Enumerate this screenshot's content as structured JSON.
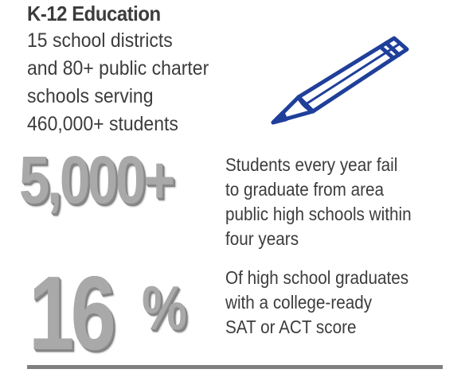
{
  "heading": "K-12 Education",
  "intro": {
    "lines": [
      "15 school districts",
      "and 80+ public charter",
      "schools serving",
      "460,000+ students"
    ]
  },
  "icon": "pencil-icon",
  "colors": {
    "pencil": "#1f3f9a",
    "big_number": "#a9a9a9",
    "text": "#3c3c3c",
    "divider": "#7f7f7f"
  },
  "stats": [
    {
      "value": "5,000+",
      "description_lines": [
        "Students every year fail",
        "to graduate from area",
        "public high schools within",
        "four years"
      ]
    },
    {
      "value": "16",
      "unit": "%",
      "description_lines": [
        "Of high school graduates",
        "with a college-ready",
        "SAT or ACT score"
      ]
    }
  ]
}
